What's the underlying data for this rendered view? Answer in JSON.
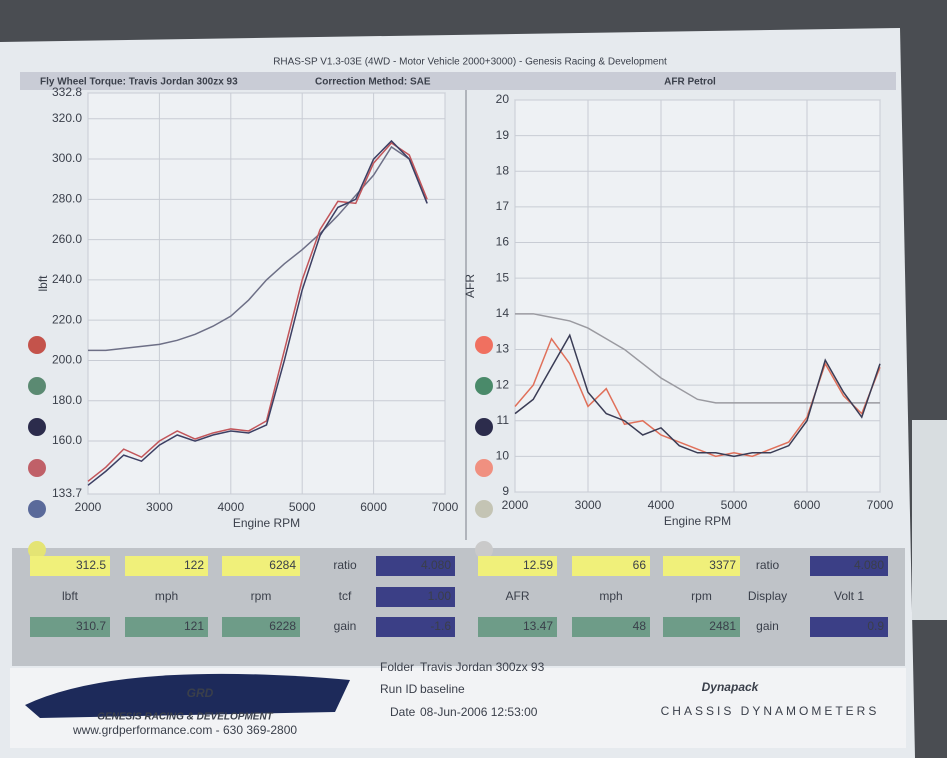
{
  "header": {
    "title": "RHAS-SP V1.3-03E  (4WD - Motor Vehicle 2000+3000) - Genesis Racing & Development",
    "left_label": "Fly Wheel Torque: Travis Jordan 300zx 93",
    "correction": "Correction Method: SAE"
  },
  "chart_data": [
    {
      "type": "line",
      "title": "Fly Wheel Torque: Travis Jordan 300zx 93",
      "y_label": "lbft",
      "x_label": "Engine RPM",
      "x": [
        2000,
        2250,
        2500,
        2750,
        3000,
        3250,
        3500,
        3750,
        4000,
        4250,
        4500,
        4750,
        5000,
        5250,
        5500,
        5750,
        6000,
        6250,
        6500,
        6750,
        7000
      ],
      "series": [
        {
          "color": "#6d6f86",
          "values": [
            205,
            205,
            206,
            207,
            208,
            210,
            213,
            217,
            222,
            230,
            240,
            248,
            255,
            263,
            272,
            282,
            292,
            306,
            300,
            278,
            null
          ]
        },
        {
          "color": "#c2555a",
          "values": [
            140,
            147,
            156,
            152,
            160,
            165,
            161,
            164,
            166,
            165,
            170,
            205,
            240,
            265,
            279,
            278,
            298,
            308,
            302,
            280,
            null
          ]
        },
        {
          "color": "#3c3f63",
          "values": [
            138,
            145,
            153,
            150,
            158,
            163,
            160,
            163,
            165,
            164,
            168,
            200,
            235,
            262,
            276,
            280,
            300,
            309,
            300,
            278,
            null
          ]
        }
      ],
      "xlim": [
        2000,
        7000
      ],
      "xticks": [
        2000,
        3000,
        4000,
        5000,
        6000,
        7000
      ],
      "ylim": [
        133.7,
        332.8
      ],
      "yticks": [
        133.7,
        {
          "value": 160,
          "label": "160.0"
        },
        {
          "value": 180,
          "label": "180.0"
        },
        {
          "value": 200,
          "label": "200.0"
        },
        {
          "value": 220,
          "label": "220.0"
        },
        {
          "value": 240,
          "label": "240.0"
        },
        {
          "value": 260,
          "label": "260.0"
        },
        {
          "value": 280,
          "label": "280.0"
        },
        {
          "value": 300,
          "label": "300.0"
        },
        {
          "value": 320,
          "label": "320.0"
        },
        332.8
      ],
      "grid": true,
      "marker_colors": [
        "#c4534b",
        "#5b8a72",
        "#2c2c4c",
        "#c06068",
        "#5a6a9a",
        "#e4e474"
      ]
    },
    {
      "type": "line",
      "title": "AFR Petrol",
      "y_label": "AFR",
      "x_label": "Engine RPM",
      "x": [
        2000,
        2250,
        2500,
        2750,
        3000,
        3250,
        3500,
        3750,
        4000,
        4250,
        4500,
        4750,
        5000,
        5250,
        5500,
        5750,
        6000,
        6250,
        6500,
        6750,
        7000
      ],
      "series": [
        {
          "color": "#9a9aa0",
          "values": [
            14,
            14,
            13.9,
            13.8,
            13.6,
            13.3,
            13.0,
            12.6,
            12.2,
            11.9,
            11.6,
            11.5,
            11.5,
            11.5,
            11.5,
            11.5,
            11.5,
            11.5,
            11.5,
            11.5,
            11.5
          ]
        },
        {
          "color": "#e0705a",
          "values": [
            11.4,
            12.0,
            13.3,
            12.6,
            11.4,
            11.9,
            10.9,
            11.0,
            10.6,
            10.4,
            10.2,
            10.0,
            10.1,
            10.0,
            10.2,
            10.4,
            11.1,
            12.6,
            11.7,
            11.2,
            12.5
          ]
        },
        {
          "color": "#3a3c55",
          "values": [
            11.2,
            11.6,
            12.5,
            13.4,
            11.8,
            11.2,
            11.0,
            10.6,
            10.8,
            10.3,
            10.1,
            10.1,
            10.0,
            10.1,
            10.1,
            10.3,
            11.0,
            12.7,
            11.8,
            11.1,
            12.6
          ]
        }
      ],
      "xlim": [
        2000,
        7000
      ],
      "xticks": [
        2000,
        3000,
        4000,
        5000,
        6000,
        7000
      ],
      "ylim": [
        9,
        20
      ],
      "yticks": [
        9,
        10,
        11,
        12,
        13,
        14,
        15,
        16,
        17,
        18,
        19,
        20
      ],
      "grid": true,
      "marker_colors": [
        "#f07060",
        "#4a8a6a",
        "#2c2c4c",
        "#f09080",
        "#c4c4b4",
        "#cacaca"
      ]
    }
  ],
  "readouts": {
    "rows": [
      [
        "312.5",
        "122",
        "6284",
        "ratio",
        "4.080",
        "12.59",
        "66",
        "3377",
        "ratio",
        "4.080"
      ],
      [
        "lbft",
        "mph",
        "rpm",
        "tcf",
        "1.00",
        "AFR",
        "mph",
        "rpm",
        "Display",
        "Volt 1"
      ],
      [
        "310.7",
        "121",
        "6228",
        "gain",
        "-1.6",
        "13.47",
        "48",
        "2481",
        "gain",
        "0.9"
      ]
    ]
  },
  "footer": {
    "logo": "GRD",
    "company": "GENESIS RACING & DEVELOPMENT",
    "web": "www.grdperformance.com - 630 369-2800",
    "folder_label": "Folder",
    "folder": "Travis Jordan 300zx 93",
    "run_label": "Run ID",
    "run": "baseline",
    "date_label": "Date",
    "date": "08-Jun-2006 12:53:00",
    "brand": "Dynapack",
    "brand_sub": "CHASSIS DYNAMOMETERS"
  }
}
